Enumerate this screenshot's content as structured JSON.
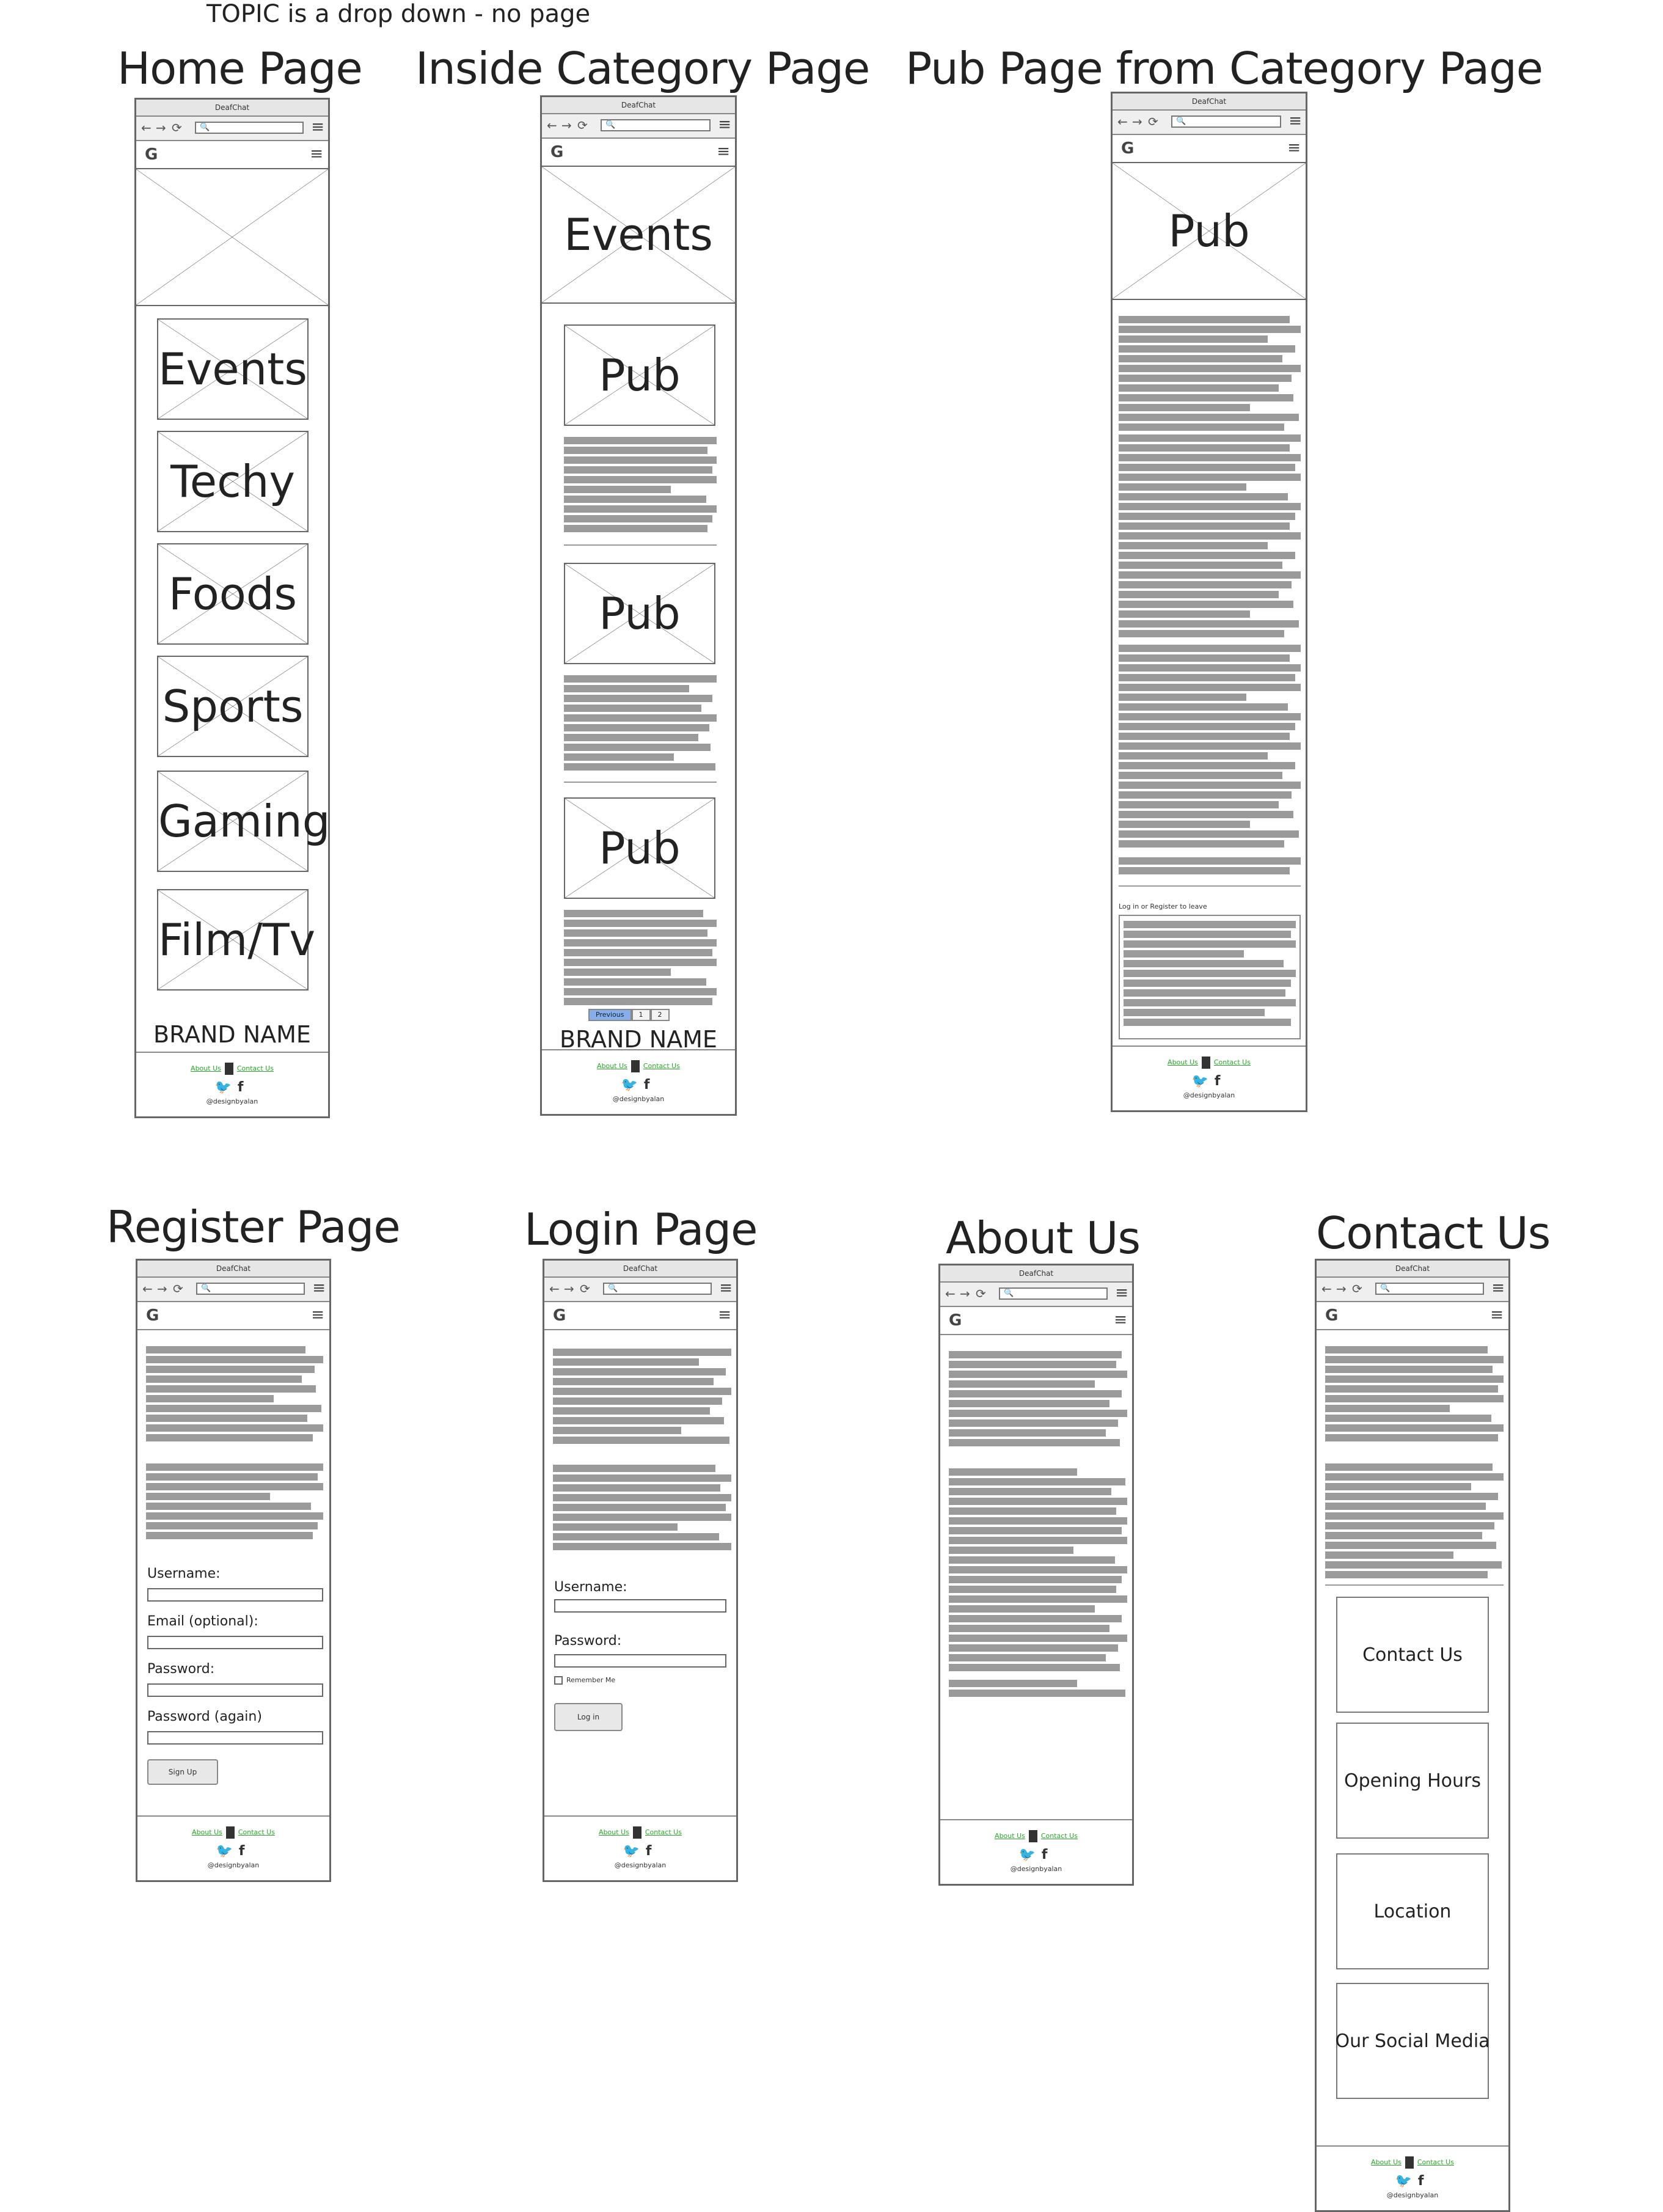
{
  "note": "TOPIC is a drop down - no page",
  "browser": {
    "window_title": "DeafChat",
    "back": "←",
    "forward": "→",
    "reload": "⟳",
    "search_glyph": "🔍",
    "menu": "≡",
    "site_logo": "G"
  },
  "footer": {
    "about": "About Us",
    "contact": "Contact Us",
    "twitter": "🐦",
    "facebook": "f",
    "handle": "@designbyalan"
  },
  "home": {
    "title": "Home Page",
    "categories": [
      "Events",
      "Techy",
      "Foods",
      "Sports",
      "Gaming",
      "Film/Tv"
    ],
    "brand": "BRAND NAME"
  },
  "category": {
    "title": "Inside Category Page",
    "hero": "Events",
    "items": [
      "Pub",
      "Pub",
      "Pub"
    ],
    "pager": [
      "Previous",
      "1",
      "2"
    ],
    "brand": "BRAND NAME"
  },
  "pub": {
    "title": "Pub Page from Category Page",
    "hero": "Pub",
    "comment_prompt": "Log in or Register to leave"
  },
  "register": {
    "title": "Register Page",
    "labels": [
      "Username:",
      "Email (optional):",
      "Password:",
      "Password (again)"
    ],
    "button": "Sign Up"
  },
  "login": {
    "title": "Login Page",
    "labels": [
      "Username:",
      "Password:"
    ],
    "remember": "Remember Me",
    "button": "Log in"
  },
  "about": {
    "title": "About Us"
  },
  "contact": {
    "title": "Contact Us",
    "boxes": [
      "Contact Us",
      "Opening Hours",
      "Location",
      "Our Social Media"
    ]
  }
}
